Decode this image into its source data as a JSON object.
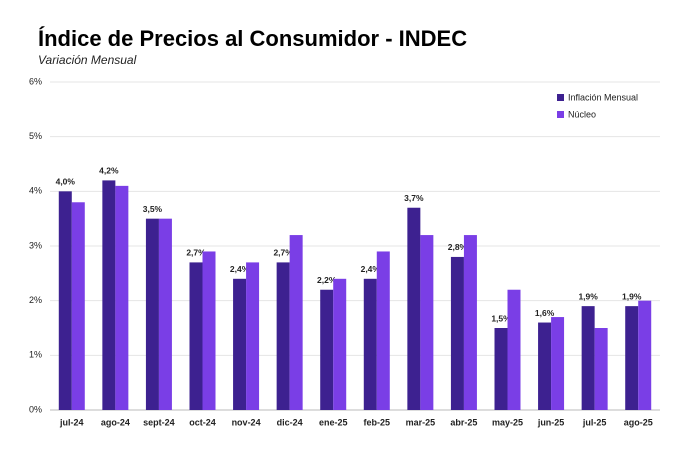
{
  "chart_data": {
    "type": "bar",
    "title": "Índice de Precios al Consumidor - INDEC",
    "subtitle": "Variación Mensual",
    "categories": [
      "jul-24",
      "ago-24",
      "sept-24",
      "oct-24",
      "nov-24",
      "dic-24",
      "ene-25",
      "feb-25",
      "mar-25",
      "abr-25",
      "may-25",
      "jun-25",
      "jul-25",
      "ago-25"
    ],
    "series": [
      {
        "name": "Inflación Mensual",
        "color": "#3d2190",
        "values": [
          4.0,
          4.2,
          3.5,
          2.7,
          2.4,
          2.7,
          2.2,
          2.4,
          3.7,
          2.8,
          1.5,
          1.6,
          1.9,
          1.9
        ],
        "value_labels": [
          "4,0%",
          "4,2%",
          "3,5%",
          "2,7%",
          "2,4%",
          "2,7%",
          "2,2%",
          "2,4%",
          "3,7%",
          "2,8%",
          "1,5%",
          "1,6%",
          "1,9%",
          "1,9%"
        ]
      },
      {
        "name": "Núcleo",
        "color": "#7a3ee6",
        "values": [
          3.8,
          4.1,
          3.5,
          2.9,
          2.7,
          3.2,
          2.4,
          2.9,
          3.2,
          3.2,
          2.2,
          1.7,
          1.5,
          2.0
        ]
      }
    ],
    "ylim": [
      0,
      6
    ],
    "yticks": [
      {
        "value": 0,
        "label": "0%"
      },
      {
        "value": 1,
        "label": "1%"
      },
      {
        "value": 2,
        "label": "2%"
      },
      {
        "value": 3,
        "label": "3%"
      },
      {
        "value": 4,
        "label": "4%"
      },
      {
        "value": 5,
        "label": "5%"
      },
      {
        "value": 6,
        "label": "6%"
      }
    ],
    "grid": true,
    "legend": "top-right"
  }
}
